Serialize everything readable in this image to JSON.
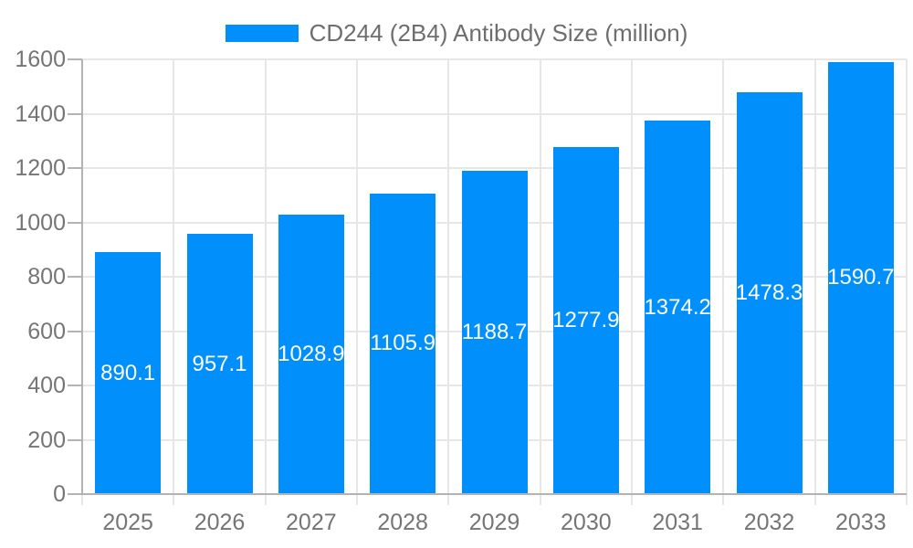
{
  "legend": {
    "label": "CD244 (2B4) Antibody Size (million)"
  },
  "chart_data": {
    "type": "bar",
    "title": "CD244 (2B4) Antibody Size (million)",
    "legend_position": "top",
    "categories": [
      "2025",
      "2026",
      "2027",
      "2028",
      "2029",
      "2030",
      "2031",
      "2032",
      "2033"
    ],
    "series": [
      {
        "name": "CD244 (2B4) Antibody Size (million)",
        "values": [
          890.1,
          957.1,
          1028.9,
          1105.9,
          1188.7,
          1277.9,
          1374.2,
          1478.3,
          1590.7
        ]
      }
    ],
    "value_labels": [
      "890.1",
      "957.1",
      "1028.9",
      "1105.9",
      "1188.7",
      "1277.9",
      "1374.2",
      "1478.3",
      "1590.7"
    ],
    "ylim": [
      0,
      1600
    ],
    "ytick_step": 200,
    "ytick_labels": [
      "0",
      "200",
      "400",
      "600",
      "800",
      "1000",
      "1200",
      "1400",
      "1600"
    ],
    "grid": {
      "horizontal": true,
      "vertical": true
    },
    "colors": {
      "bar": "#008FFB",
      "grid_line": "#e7e7e7",
      "axis_line": "#b3b3b3",
      "tick_label": "#757575",
      "title": "#6e6e6e",
      "value_label": "#ffffff"
    }
  }
}
